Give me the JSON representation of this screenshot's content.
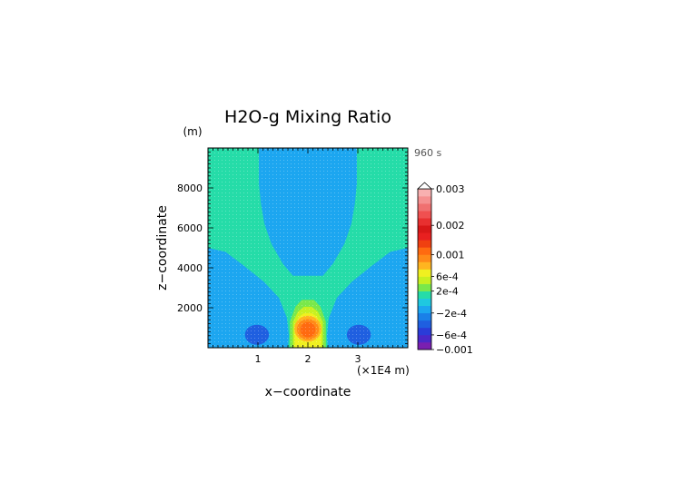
{
  "chart_data": {
    "type": "heatmap",
    "title": "H2O-g Mixing Ratio",
    "time_label": "960 s",
    "xlabel": "x−coordinate",
    "x_unit": "(×1E4 m)",
    "ylabel": "z−coordinate",
    "y_unit": "(m)",
    "xlim": [
      0,
      4
    ],
    "ylim": [
      0,
      10000
    ],
    "x_ticks": [
      1,
      2,
      3
    ],
    "x_tick_labels": [
      "1",
      "2",
      "3"
    ],
    "y_ticks": [
      2000,
      4000,
      6000,
      8000
    ],
    "y_tick_labels": [
      "2000",
      "4000",
      "6000",
      "8000"
    ],
    "field_regions": [
      {
        "name": "background",
        "level": "-2e-4 to 2e-4",
        "color": "#25dca8",
        "polygon": [
          [
            0,
            0
          ],
          [
            4,
            0
          ],
          [
            4,
            10000
          ],
          [
            0,
            10000
          ]
        ]
      },
      {
        "name": "dry-region-left",
        "level": "-2e-4",
        "color": "#1ca6f0",
        "polygon": [
          [
            0,
            0
          ],
          [
            1.6,
            0
          ],
          [
            1.62,
            600
          ],
          [
            1.58,
            1500
          ],
          [
            1.42,
            2500
          ],
          [
            1.12,
            3300
          ],
          [
            0.72,
            4100
          ],
          [
            0.35,
            4800
          ],
          [
            0,
            5000
          ]
        ]
      },
      {
        "name": "dry-region-right",
        "level": "-2e-4",
        "color": "#1ca6f0",
        "polygon": [
          [
            4,
            0
          ],
          [
            2.4,
            0
          ],
          [
            2.38,
            600
          ],
          [
            2.42,
            1500
          ],
          [
            2.58,
            2500
          ],
          [
            2.88,
            3300
          ],
          [
            3.28,
            4100
          ],
          [
            3.65,
            4800
          ],
          [
            4,
            5000
          ]
        ]
      },
      {
        "name": "dry-column-top",
        "level": "-2e-4",
        "color": "#1ca6f0",
        "polygon": [
          [
            1.02,
            10000
          ],
          [
            1.02,
            8200
          ],
          [
            1.06,
            7200
          ],
          [
            1.13,
            6200
          ],
          [
            1.27,
            5200
          ],
          [
            1.5,
            4200
          ],
          [
            1.7,
            3600
          ],
          [
            2.3,
            3600
          ],
          [
            2.5,
            4200
          ],
          [
            2.73,
            5200
          ],
          [
            2.87,
            6200
          ],
          [
            2.94,
            7200
          ],
          [
            2.98,
            8200
          ],
          [
            2.98,
            10000
          ]
        ]
      },
      {
        "name": "dry-patch-left",
        "level": "-6e-4",
        "color": "#1f5fe0",
        "ellipse": {
          "cx": 0.98,
          "cy": 650,
          "rx": 0.24,
          "ry": 500
        }
      },
      {
        "name": "dry-patch-right",
        "level": "-6e-4",
        "color": "#1f5fe0",
        "ellipse": {
          "cx": 3.02,
          "cy": 650,
          "rx": 0.24,
          "ry": 500
        }
      },
      {
        "name": "moist-plume-1",
        "level": "2e-4",
        "color": "#7ae84a",
        "polygon": [
          [
            1.64,
            0
          ],
          [
            1.64,
            1300
          ],
          [
            1.75,
            2050
          ],
          [
            1.88,
            2400
          ],
          [
            2.12,
            2400
          ],
          [
            2.25,
            2050
          ],
          [
            2.36,
            1300
          ],
          [
            2.36,
            0
          ]
        ]
      },
      {
        "name": "moist-plume-2",
        "level": "4e-4",
        "color": "#c8f020",
        "polygon": [
          [
            1.7,
            0
          ],
          [
            1.7,
            1300
          ],
          [
            1.8,
            1800
          ],
          [
            1.92,
            2050
          ],
          [
            2.08,
            2050
          ],
          [
            2.2,
            1800
          ],
          [
            2.3,
            1300
          ],
          [
            2.3,
            0
          ]
        ]
      },
      {
        "name": "moist-plume-3",
        "level": "6e-4",
        "color": "#f0f020",
        "polygon": [
          [
            1.74,
            0
          ],
          [
            1.73,
            1100
          ],
          [
            1.82,
            1550
          ],
          [
            1.92,
            1720
          ],
          [
            2.08,
            1720
          ],
          [
            2.18,
            1550
          ],
          [
            2.27,
            1100
          ],
          [
            2.26,
            0
          ]
        ]
      },
      {
        "name": "moist-core-1",
        "level": "8e-4",
        "color": "#ffb520",
        "ellipse": {
          "cx": 2.0,
          "cy": 950,
          "rx": 0.27,
          "ry": 650
        }
      },
      {
        "name": "moist-core-2",
        "level": "1e-3",
        "color": "#ff8a18",
        "ellipse": {
          "cx": 2.0,
          "cy": 920,
          "rx": 0.22,
          "ry": 520
        }
      },
      {
        "name": "moist-core-3",
        "level": "1.2e-3",
        "color": "#ff6a10",
        "ellipse": {
          "cx": 2.0,
          "cy": 900,
          "rx": 0.15,
          "ry": 380
        }
      }
    ],
    "colorbar": {
      "colors": [
        "#7a1fb0",
        "#4a28c8",
        "#2a3cd8",
        "#1f5fe0",
        "#1a80e8",
        "#1ca6f0",
        "#1fc8e0",
        "#25dca8",
        "#7ae84a",
        "#c8f020",
        "#f0f020",
        "#ffb520",
        "#ff8a18",
        "#ff6a10",
        "#f04010",
        "#e82020",
        "#d81818",
        "#e83030",
        "#f05050",
        "#f07070",
        "#f59090",
        "#f8b0b0"
      ],
      "tick_labels": [
        "0.003",
        "0.002",
        "0.001",
        "6e-4",
        "2e-4",
        "−2e-4",
        "−6e-4",
        "−0.001"
      ],
      "tick_values": [
        0.003,
        0.002,
        0.001,
        0.0006,
        0.0002,
        -0.0002,
        -0.0006,
        -0.001
      ]
    }
  }
}
